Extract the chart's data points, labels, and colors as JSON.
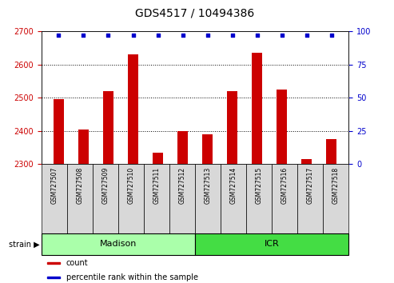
{
  "title": "GDS4517 / 10494386",
  "samples": [
    "GSM727507",
    "GSM727508",
    "GSM727509",
    "GSM727510",
    "GSM727511",
    "GSM727512",
    "GSM727513",
    "GSM727514",
    "GSM727515",
    "GSM727516",
    "GSM727517",
    "GSM727518"
  ],
  "counts": [
    2495,
    2403,
    2520,
    2630,
    2335,
    2400,
    2390,
    2520,
    2635,
    2525,
    2315,
    2375
  ],
  "percentiles": [
    97,
    97,
    97,
    97,
    97,
    97,
    97,
    97,
    97,
    97,
    97,
    97
  ],
  "ylim_left": [
    2300,
    2700
  ],
  "ylim_right": [
    0,
    100
  ],
  "yticks_left": [
    2300,
    2400,
    2500,
    2600,
    2700
  ],
  "yticks_right": [
    0,
    25,
    50,
    75,
    100
  ],
  "gridlines": [
    2400,
    2500,
    2600
  ],
  "bar_color": "#cc0000",
  "dot_color": "#0000cc",
  "bar_width": 0.4,
  "groups": [
    {
      "label": "Madison",
      "start": 0,
      "end": 5,
      "color": "#aaffaa"
    },
    {
      "label": "ICR",
      "start": 6,
      "end": 11,
      "color": "#44dd44"
    }
  ],
  "legend_items": [
    {
      "label": "count",
      "color": "#cc0000"
    },
    {
      "label": "percentile rank within the sample",
      "color": "#0000cc"
    }
  ],
  "title_fontsize": 10,
  "tick_fontsize": 7,
  "sample_fontsize": 5.5,
  "legend_fontsize": 7,
  "group_fontsize": 8
}
